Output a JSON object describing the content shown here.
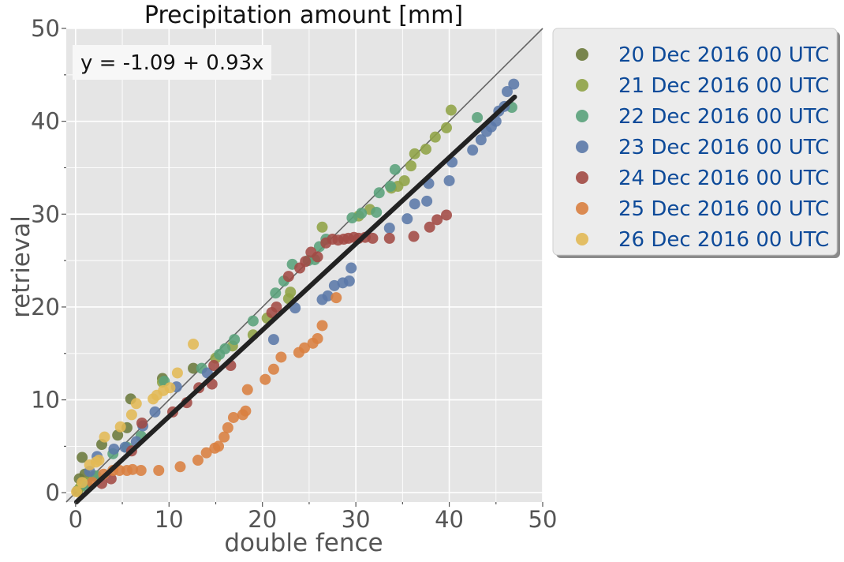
{
  "chart_data": {
    "type": "scatter",
    "title": "Precipitation amount [mm]",
    "xlabel": "double fence",
    "ylabel": "retrieval",
    "xlim": [
      -1,
      50
    ],
    "ylim": [
      -1,
      50
    ],
    "xticks": [
      0,
      10,
      20,
      30,
      40,
      50
    ],
    "yticks": [
      0,
      10,
      20,
      30,
      40,
      50
    ],
    "xtick_labels": [
      "0",
      "10",
      "20",
      "30",
      "40",
      "50"
    ],
    "ytick_labels": [
      "0",
      "10",
      "20",
      "30",
      "40",
      "50"
    ],
    "grid": true,
    "legend_position": "outside-right-top",
    "annotation": "y = -1.09 + 0.93x",
    "fit_line": {
      "intercept": -1.09,
      "slope": 0.93,
      "x_range": [
        0,
        47
      ],
      "color": "#222222"
    },
    "reference_line": {
      "slope": 1,
      "intercept": 0,
      "color": "#666666"
    },
    "series": [
      {
        "name": "20 Dec 2016 00 UTC",
        "color": "#6b7a3c",
        "points": [
          [
            0.2,
            0.2
          ],
          [
            0.4,
            1.5
          ],
          [
            0.7,
            3.8
          ],
          [
            1.0,
            2.0
          ],
          [
            2.8,
            5.2
          ],
          [
            4.5,
            6.2
          ],
          [
            5.5,
            7.0
          ],
          [
            5.9,
            10.1
          ],
          [
            9.3,
            12.3
          ],
          [
            12.6,
            13.4
          ]
        ]
      },
      {
        "name": "21 Dec 2016 00 UTC",
        "color": "#8fa346",
        "points": [
          [
            0.5,
            0.6
          ],
          [
            1.2,
            1.1
          ],
          [
            2.0,
            1.8
          ],
          [
            9.3,
            11.9
          ],
          [
            15.0,
            14.5
          ],
          [
            16.8,
            15.8
          ],
          [
            19.0,
            17.0
          ],
          [
            20.5,
            18.8
          ],
          [
            22.8,
            20.9
          ],
          [
            23.0,
            21.6
          ],
          [
            26.4,
            28.6
          ],
          [
            30.3,
            29.8
          ],
          [
            31.5,
            30.5
          ],
          [
            33.8,
            32.8
          ],
          [
            34.5,
            33.0
          ],
          [
            35.2,
            33.6
          ],
          [
            35.9,
            35.2
          ],
          [
            36.3,
            36.5
          ],
          [
            37.5,
            37.0
          ],
          [
            38.5,
            38.3
          ],
          [
            39.7,
            39.3
          ],
          [
            40.2,
            41.2
          ]
        ]
      },
      {
        "name": "22 Dec 2016 00 UTC",
        "color": "#5aa27b",
        "points": [
          [
            1.2,
            0.7
          ],
          [
            2.2,
            1.8
          ],
          [
            4.0,
            4.2
          ],
          [
            5.5,
            4.9
          ],
          [
            7.0,
            6.1
          ],
          [
            9.5,
            12.0
          ],
          [
            13.5,
            13.4
          ],
          [
            15.4,
            14.9
          ],
          [
            16.0,
            15.5
          ],
          [
            17.0,
            16.5
          ],
          [
            19.0,
            18.5
          ],
          [
            21.4,
            21.5
          ],
          [
            22.3,
            22.8
          ],
          [
            23.2,
            24.6
          ],
          [
            24.9,
            25.0
          ],
          [
            25.6,
            25.1
          ],
          [
            26.1,
            26.5
          ],
          [
            26.8,
            27.3
          ],
          [
            29.6,
            29.6
          ],
          [
            30.6,
            30.1
          ],
          [
            32.2,
            30.2
          ],
          [
            32.5,
            32.3
          ],
          [
            33.7,
            33.0
          ],
          [
            34.2,
            34.8
          ],
          [
            43.0,
            40.4
          ],
          [
            46.7,
            41.5
          ]
        ]
      },
      {
        "name": "23 Dec 2016 00 UTC",
        "color": "#5b79a8",
        "points": [
          [
            1.5,
            2.3
          ],
          [
            2.3,
            3.9
          ],
          [
            4.1,
            4.7
          ],
          [
            5.3,
            4.9
          ],
          [
            6.5,
            5.5
          ],
          [
            7.2,
            7.2
          ],
          [
            8.5,
            8.7
          ],
          [
            10.8,
            11.4
          ],
          [
            14.1,
            12.9
          ],
          [
            21.2,
            16.5
          ],
          [
            23.5,
            19.9
          ],
          [
            26.4,
            20.8
          ],
          [
            27.0,
            21.2
          ],
          [
            27.7,
            22.3
          ],
          [
            28.6,
            22.6
          ],
          [
            29.3,
            22.8
          ],
          [
            29.5,
            24.2
          ],
          [
            33.6,
            28.5
          ],
          [
            35.5,
            29.5
          ],
          [
            36.3,
            31.1
          ],
          [
            37.6,
            31.4
          ],
          [
            37.8,
            33.3
          ],
          [
            40.0,
            33.6
          ],
          [
            40.3,
            35.6
          ],
          [
            42.5,
            36.9
          ],
          [
            43.4,
            38.0
          ],
          [
            44.0,
            38.9
          ],
          [
            44.5,
            39.4
          ],
          [
            45.0,
            40.0
          ],
          [
            45.3,
            41.1
          ],
          [
            45.9,
            41.6
          ],
          [
            46.2,
            43.2
          ],
          [
            46.9,
            44.0
          ]
        ]
      },
      {
        "name": "24 Dec 2016 00 UTC",
        "color": "#a24a44",
        "points": [
          [
            2.8,
            1.0
          ],
          [
            3.8,
            1.5
          ],
          [
            6.0,
            4.5
          ],
          [
            7.1,
            7.5
          ],
          [
            10.4,
            8.7
          ],
          [
            11.9,
            9.7
          ],
          [
            13.2,
            11.3
          ],
          [
            14.6,
            11.7
          ],
          [
            14.8,
            13.7
          ],
          [
            16.6,
            13.7
          ],
          [
            21.0,
            19.4
          ],
          [
            21.5,
            20.0
          ],
          [
            22.8,
            23.3
          ],
          [
            24.0,
            24.2
          ],
          [
            24.6,
            24.9
          ],
          [
            25.2,
            25.9
          ],
          [
            25.9,
            25.4
          ],
          [
            26.8,
            26.9
          ],
          [
            27.5,
            27.3
          ],
          [
            28.1,
            27.2
          ],
          [
            28.7,
            27.3
          ],
          [
            29.2,
            27.4
          ],
          [
            29.8,
            27.5
          ],
          [
            30.3,
            27.4
          ],
          [
            31.0,
            27.5
          ],
          [
            31.8,
            27.4
          ],
          [
            33.6,
            27.4
          ],
          [
            36.2,
            27.6
          ],
          [
            37.9,
            28.6
          ],
          [
            38.7,
            29.4
          ],
          [
            39.7,
            29.9
          ]
        ]
      },
      {
        "name": "25 Dec 2016 00 UTC",
        "color": "#d98040",
        "points": [
          [
            1.8,
            1.1
          ],
          [
            3.0,
            2.0
          ],
          [
            4.0,
            2.4
          ],
          [
            4.7,
            2.4
          ],
          [
            5.5,
            2.4
          ],
          [
            6.1,
            2.5
          ],
          [
            7.0,
            2.4
          ],
          [
            8.9,
            2.4
          ],
          [
            11.2,
            2.8
          ],
          [
            13.1,
            3.5
          ],
          [
            14.0,
            4.3
          ],
          [
            14.9,
            4.8
          ],
          [
            15.3,
            5.0
          ],
          [
            15.9,
            6.0
          ],
          [
            16.3,
            7.0
          ],
          [
            16.9,
            8.1
          ],
          [
            17.9,
            8.4
          ],
          [
            18.2,
            8.8
          ],
          [
            18.4,
            11.1
          ],
          [
            20.3,
            12.2
          ],
          [
            21.2,
            13.3
          ],
          [
            22.0,
            14.6
          ],
          [
            23.9,
            15.1
          ],
          [
            24.5,
            15.6
          ],
          [
            25.4,
            16.1
          ],
          [
            25.9,
            16.6
          ],
          [
            26.4,
            18.0
          ],
          [
            27.9,
            21.0
          ]
        ]
      },
      {
        "name": "26 Dec 2016 00 UTC",
        "color": "#e2b955",
        "points": [
          [
            0.1,
            0.1
          ],
          [
            0.7,
            1.1
          ],
          [
            1.5,
            3.0
          ],
          [
            2.2,
            3.3
          ],
          [
            2.5,
            3.5
          ],
          [
            3.1,
            6.0
          ],
          [
            4.8,
            7.1
          ],
          [
            6.0,
            8.4
          ],
          [
            6.5,
            9.6
          ],
          [
            8.3,
            10.1
          ],
          [
            8.7,
            10.5
          ],
          [
            9.4,
            11.0
          ],
          [
            10.1,
            11.3
          ],
          [
            10.9,
            12.9
          ],
          [
            12.6,
            16.0
          ]
        ]
      }
    ]
  }
}
